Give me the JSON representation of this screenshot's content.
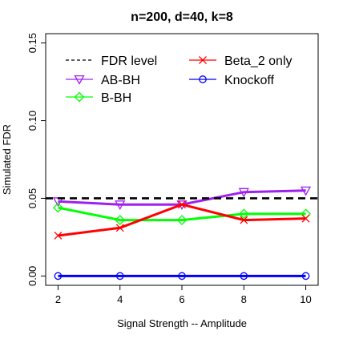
{
  "chart_data": {
    "type": "line",
    "title": "n=200, d=40, k=8",
    "xlabel": "Signal Strength -- Amplitude",
    "ylabel": "Simulated FDR",
    "x": [
      2,
      4,
      6,
      8,
      10
    ],
    "xlim": [
      2,
      10
    ],
    "ylim": [
      0,
      0.15
    ],
    "xticks": [
      "2",
      "4",
      "6",
      "8",
      "10"
    ],
    "yticks": [
      "0.00",
      "0.05",
      "0.10",
      "0.15"
    ],
    "grid": false,
    "legend_position": "top-left",
    "fdr_level": 0.05,
    "series": [
      {
        "name": "FDR level",
        "values": [
          0.05,
          0.05,
          0.05,
          0.05,
          0.05
        ],
        "color": "#000000",
        "marker": "none",
        "dash": "dashed"
      },
      {
        "name": "AB-BH",
        "values": [
          0.048,
          0.046,
          0.046,
          0.054,
          0.055
        ],
        "color": "#A020F0",
        "marker": "triangle-down",
        "dash": "solid"
      },
      {
        "name": "B-BH",
        "values": [
          0.044,
          0.036,
          0.036,
          0.04,
          0.04
        ],
        "color": "#00FF00",
        "marker": "diamond",
        "dash": "solid"
      },
      {
        "name": "Beta_2 only",
        "values": [
          0.026,
          0.031,
          0.046,
          0.036,
          0.037
        ],
        "color": "#FF0000",
        "marker": "x",
        "dash": "solid"
      },
      {
        "name": "Knockoff",
        "values": [
          0.0,
          0.0,
          0.0,
          0.0,
          0.0
        ],
        "color": "#0000FF",
        "marker": "circle",
        "dash": "solid"
      }
    ]
  }
}
